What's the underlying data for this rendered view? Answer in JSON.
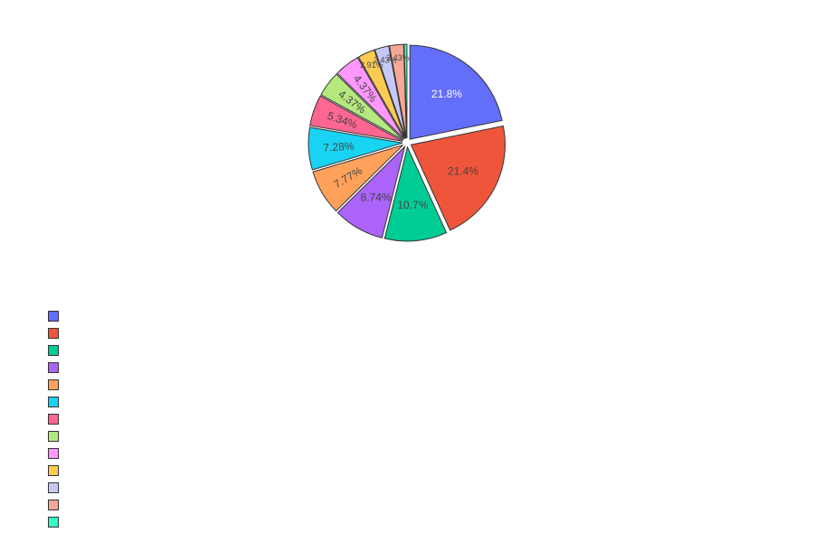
{
  "chart_data": {
    "type": "pie",
    "slices": [
      {
        "label": "",
        "value": 21.8,
        "text": "21.8%",
        "color": "#636efa",
        "text_color": "#ffffff"
      },
      {
        "label": "",
        "value": 21.4,
        "text": "21.4%",
        "color": "#ef553b",
        "text_color": "#444444"
      },
      {
        "label": "",
        "value": 10.7,
        "text": "10.7%",
        "color": "#00cc96",
        "text_color": "#444444"
      },
      {
        "label": "",
        "value": 8.74,
        "text": "8.74%",
        "color": "#ab63fa",
        "text_color": "#444444"
      },
      {
        "label": "",
        "value": 7.77,
        "text": "7.77%",
        "color": "#ffa15a",
        "text_color": "#444444"
      },
      {
        "label": "",
        "value": 7.28,
        "text": "7.28%",
        "color": "#19d3f3",
        "text_color": "#444444"
      },
      {
        "label": "",
        "value": 5.34,
        "text": "5.34%",
        "color": "#ff6692",
        "text_color": "#444444"
      },
      {
        "label": "",
        "value": 4.37,
        "text": "4.37%",
        "color": "#b6e880",
        "text_color": "#444444"
      },
      {
        "label": "",
        "value": 4.37,
        "text": "4.37%",
        "color": "#ff97ff",
        "text_color": "#444444"
      },
      {
        "label": "",
        "value": 2.91,
        "text": "2.91%",
        "color": "#fecb52",
        "text_color": "#444444"
      },
      {
        "label": "",
        "value": 2.43,
        "text": "2.43%",
        "color": "#c6c8f5",
        "text_color": "#444444"
      },
      {
        "label": "",
        "value": 2.43,
        "text": "2.43%",
        "color": "#f5a896",
        "text_color": "#444444"
      },
      {
        "label": "",
        "value": 0.49,
        "text": "",
        "color": "#33ffc8",
        "text_color": "#444444"
      }
    ],
    "legend_placement": "bottom-left",
    "pulled_slices": true,
    "slice_border_color": "#333333",
    "direction": "clockwise",
    "start": "top"
  }
}
